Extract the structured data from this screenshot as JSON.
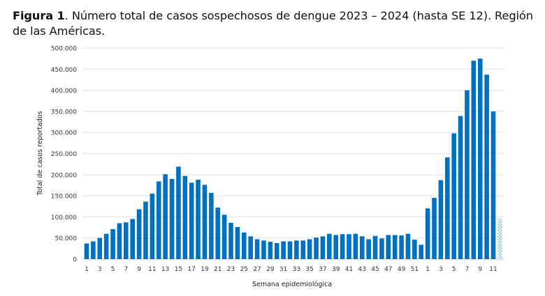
{
  "caption": {
    "label": "Figura 1",
    "text": ". Número total de casos sospechosos de dengue 2023 – 2024 (hasta SE 12). Región de las Américas."
  },
  "chart_data": {
    "type": "bar",
    "title": "",
    "xlabel": "Semana epidemiológica",
    "ylabel": "Total de casos reportados",
    "ylim": [
      0,
      500000
    ],
    "yticks": [
      0,
      50000,
      100000,
      150000,
      200000,
      250000,
      300000,
      350000,
      400000,
      450000,
      500000
    ],
    "ytick_labels": [
      "0",
      "50.000",
      "100.000",
      "150.000",
      "200.000",
      "250.000",
      "300.000",
      "350.000",
      "400.000",
      "450.000",
      "500.000"
    ],
    "grid": true,
    "bar_color": "#0070C0",
    "hatched_bar_color": "#8DB4E2",
    "categories": [
      "2023-1",
      "2023-2",
      "2023-3",
      "2023-4",
      "2023-5",
      "2023-6",
      "2023-7",
      "2023-8",
      "2023-9",
      "2023-10",
      "2023-11",
      "2023-12",
      "2023-13",
      "2023-14",
      "2023-15",
      "2023-16",
      "2023-17",
      "2023-18",
      "2023-19",
      "2023-20",
      "2023-21",
      "2023-22",
      "2023-23",
      "2023-24",
      "2023-25",
      "2023-26",
      "2023-27",
      "2023-28",
      "2023-29",
      "2023-30",
      "2023-31",
      "2023-32",
      "2023-33",
      "2023-34",
      "2023-35",
      "2023-36",
      "2023-37",
      "2023-38",
      "2023-39",
      "2023-40",
      "2023-41",
      "2023-42",
      "2023-43",
      "2023-44",
      "2023-45",
      "2023-46",
      "2023-47",
      "2023-48",
      "2023-49",
      "2023-50",
      "2023-51",
      "2023-52",
      "2024-1",
      "2024-2",
      "2024-3",
      "2024-4",
      "2024-5",
      "2024-6",
      "2024-7",
      "2024-8",
      "2024-9",
      "2024-10",
      "2024-11",
      "2024-12"
    ],
    "tick_labels": [
      "1",
      "",
      "3",
      "",
      "5",
      "",
      "7",
      "",
      "9",
      "",
      "11",
      "",
      "13",
      "",
      "15",
      "",
      "17",
      "",
      "19",
      "",
      "21",
      "",
      "23",
      "",
      "25",
      "",
      "27",
      "",
      "29",
      "",
      "31",
      "",
      "33",
      "",
      "35",
      "",
      "37",
      "",
      "39",
      "",
      "41",
      "",
      "43",
      "",
      "45",
      "",
      "47",
      "",
      "49",
      "",
      "51",
      "",
      "1",
      "",
      "3",
      "",
      "5",
      "",
      "7",
      "",
      "9",
      "",
      "11",
      ""
    ],
    "values": [
      37000,
      42000,
      50000,
      60000,
      71000,
      85000,
      87000,
      95000,
      118000,
      136000,
      155000,
      184000,
      201000,
      190000,
      219000,
      197000,
      181000,
      188000,
      176000,
      157000,
      122000,
      105000,
      86000,
      76000,
      63000,
      54000,
      47000,
      44000,
      41000,
      38000,
      42000,
      42000,
      44000,
      44000,
      47000,
      51000,
      54000,
      60000,
      57000,
      59000,
      59000,
      60000,
      54000,
      47000,
      55000,
      49000,
      57000,
      57000,
      56000,
      60000,
      46000,
      34000,
      120000,
      145000,
      187000,
      241000,
      298000,
      339000,
      400000,
      470000,
      475000,
      437000,
      350000,
      96000
    ],
    "hatched": [
      63
    ]
  }
}
